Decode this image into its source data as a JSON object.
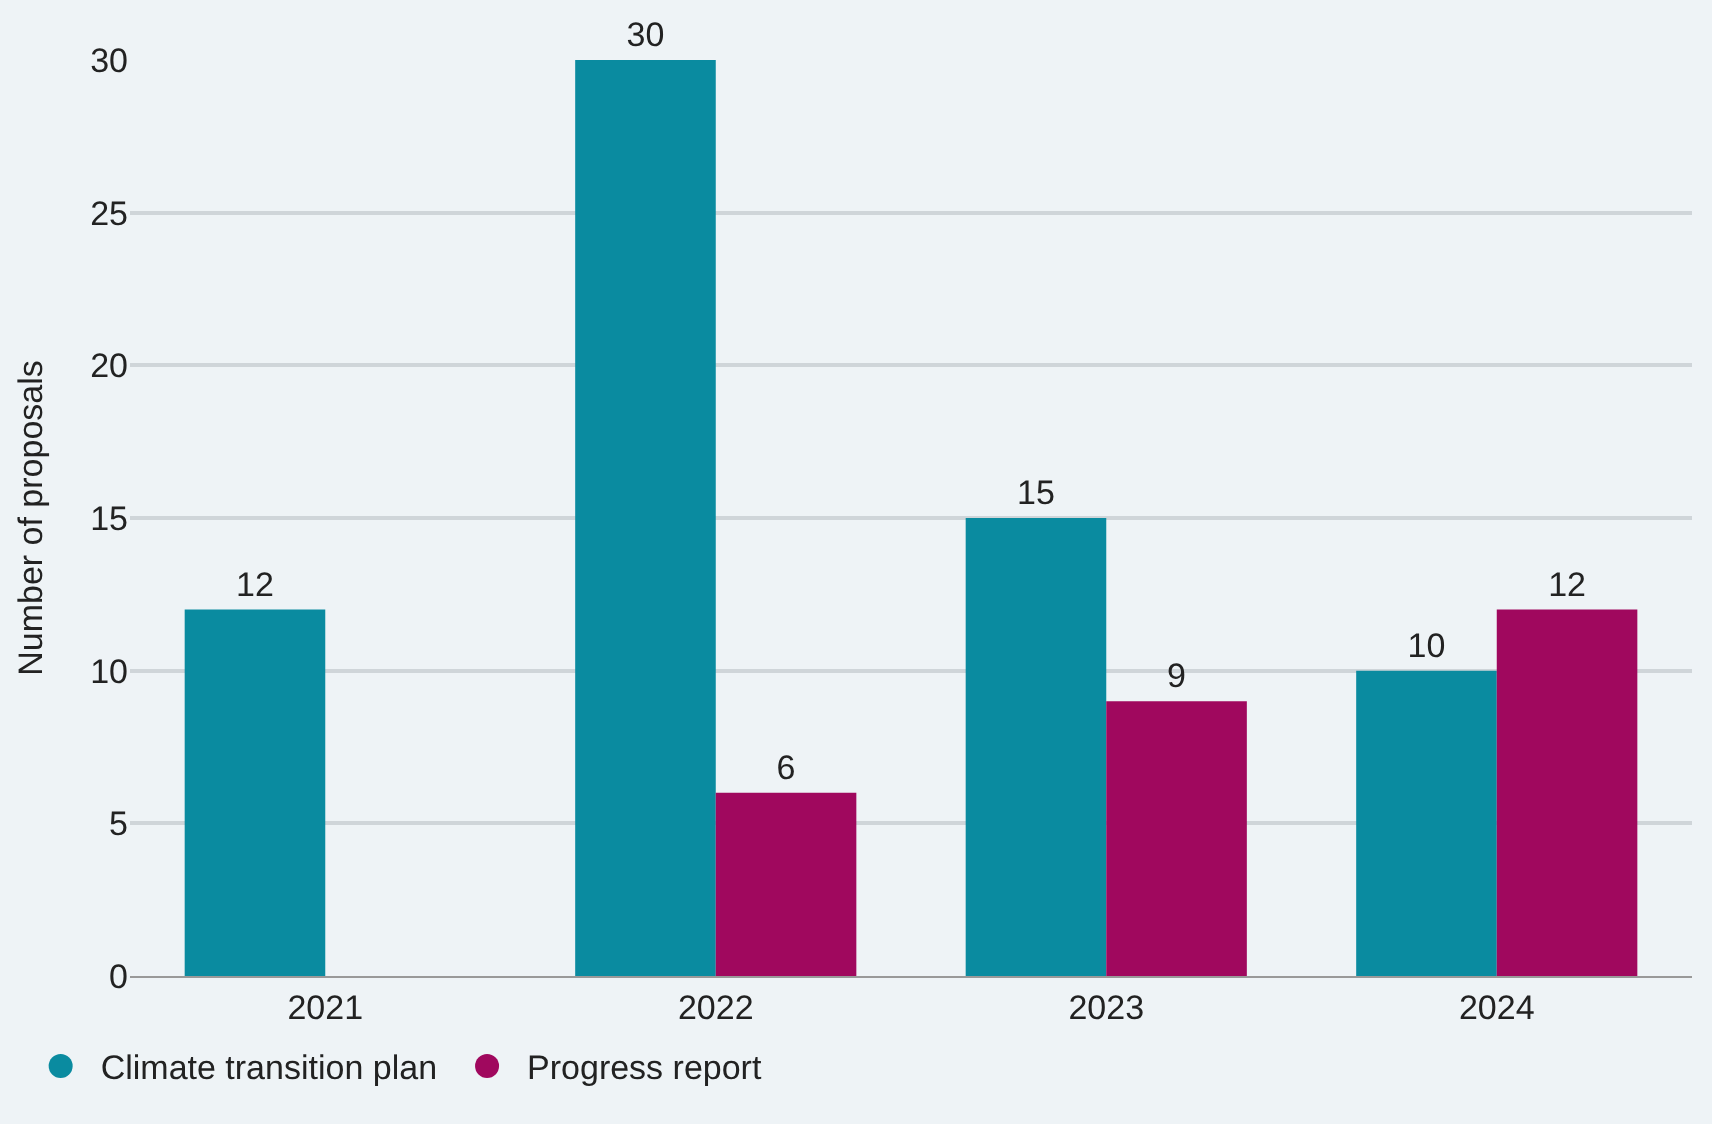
{
  "chart_data": {
    "type": "bar",
    "ylabel": "Number of proposals",
    "categories": [
      "2021",
      "2022",
      "2023",
      "2024"
    ],
    "series": [
      {
        "name": "Climate transition plan",
        "color": "#0a8ba0",
        "values": [
          12,
          30,
          15,
          10
        ]
      },
      {
        "name": "Progress report",
        "color": "#a0085e",
        "values": [
          null,
          6,
          9,
          12
        ]
      }
    ],
    "ylim": [
      0,
      30
    ],
    "yticks": [
      0,
      5,
      10,
      15,
      20,
      25,
      30
    ],
    "grid": "y",
    "legend": "bottom left",
    "data_labels": true
  }
}
